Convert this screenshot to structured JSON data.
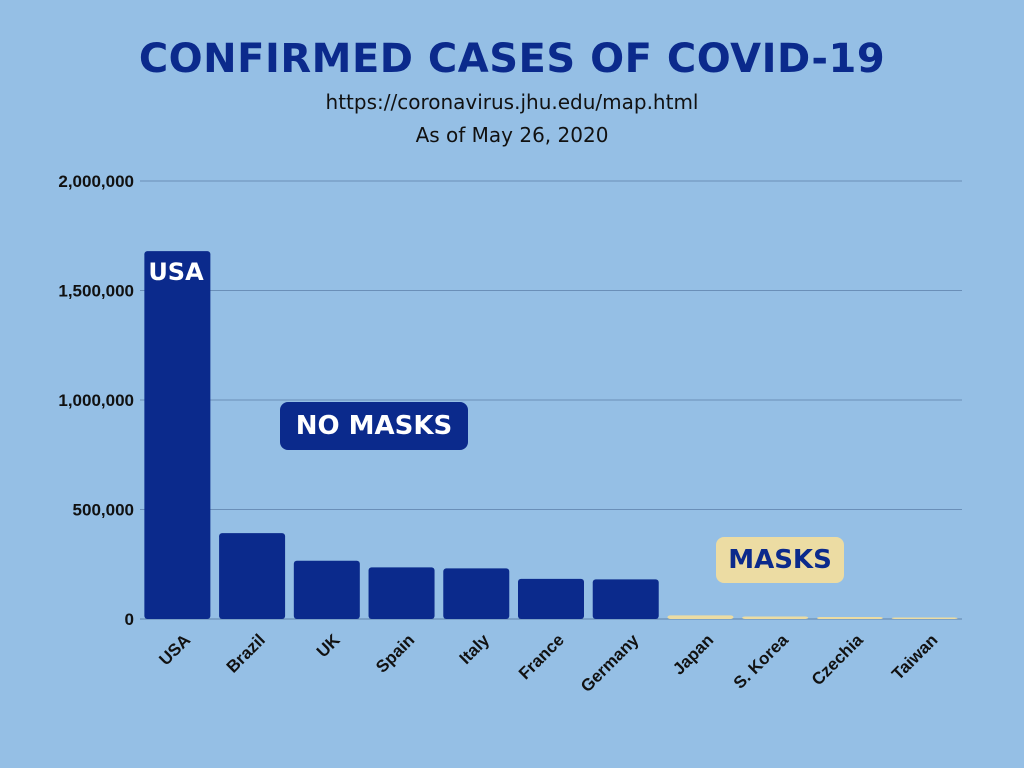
{
  "header": {
    "title": "CONFIRMED CASES OF COVID-19",
    "source": "https://coronavirus.jhu.edu/map.html",
    "date": "As of May 26, 2020"
  },
  "annotations": {
    "no_masks": "NO MASKS",
    "masks": "MASKS",
    "usa_bar_label": "USA"
  },
  "colors": {
    "background": "#95bfe5",
    "no_mask_bar": "#0b2a8c",
    "mask_bar": "#ecdca3",
    "gridline": "#6a8fb8"
  },
  "chart_data": {
    "type": "bar",
    "title": "CONFIRMED CASES OF COVID-19",
    "subtitle": "As of May 26, 2020",
    "categories": [
      "USA",
      "Brazil",
      "UK",
      "Spain",
      "Italy",
      "France",
      "Germany",
      "Japan",
      "S. Korea",
      "Czechia",
      "Taiwan"
    ],
    "values": [
      1680000,
      392000,
      266000,
      236000,
      231000,
      183000,
      181000,
      16600,
      11200,
      9000,
      441
    ],
    "groups": [
      "no_mask",
      "no_mask",
      "no_mask",
      "no_mask",
      "no_mask",
      "no_mask",
      "no_mask",
      "mask",
      "mask",
      "mask",
      "mask"
    ],
    "yticks": [
      "0",
      "500,000",
      "1,000,000",
      "1,500,000",
      "2,000,000"
    ],
    "ylim": [
      0,
      2000000
    ],
    "grid": true,
    "xlabel": "",
    "ylabel": ""
  }
}
